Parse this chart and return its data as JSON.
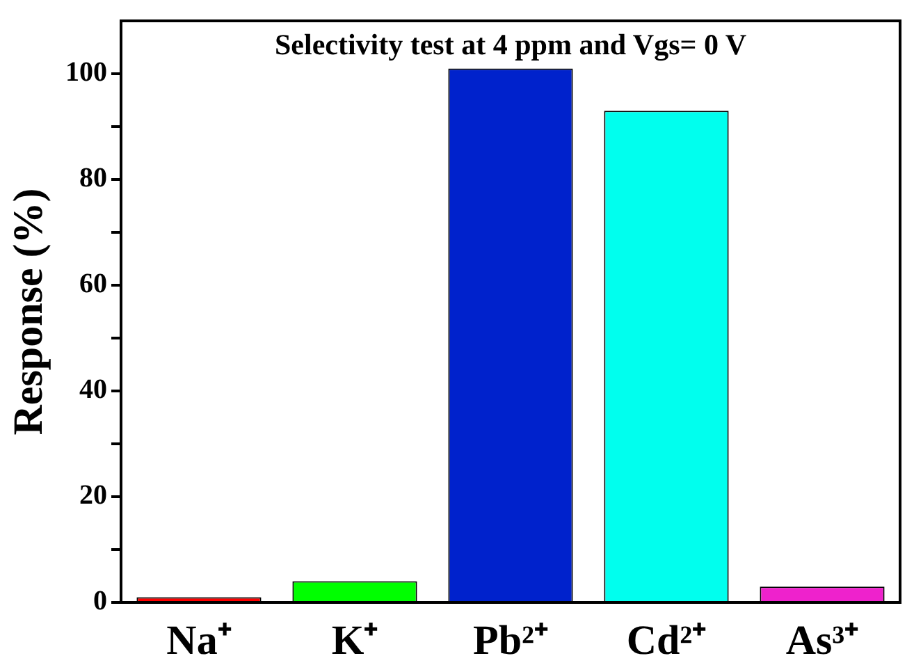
{
  "chart_data": {
    "type": "bar",
    "title": "Selectivity test at 4 ppm and Vgs= 0 V",
    "ylabel": "Response (%)",
    "categories": [
      "Na⁺",
      "K⁺",
      "Pb²⁺",
      "Cd²⁺",
      "As³⁺"
    ],
    "values": [
      1,
      4,
      101,
      93,
      3
    ],
    "colors": [
      "#ff0000",
      "#00ff00",
      "#0022cc",
      "#00ffee",
      "#ee22cc"
    ],
    "ylim": [
      0,
      110
    ],
    "yticks": [
      0,
      {
        "value": 10,
        "label": null
      },
      20,
      {
        "value": 30,
        "label": null
      },
      40,
      {
        "value": 50,
        "label": null
      },
      60,
      {
        "value": 70,
        "label": null
      },
      80,
      {
        "value": 90,
        "label": null
      },
      100
    ],
    "grid": false,
    "legend": false
  }
}
